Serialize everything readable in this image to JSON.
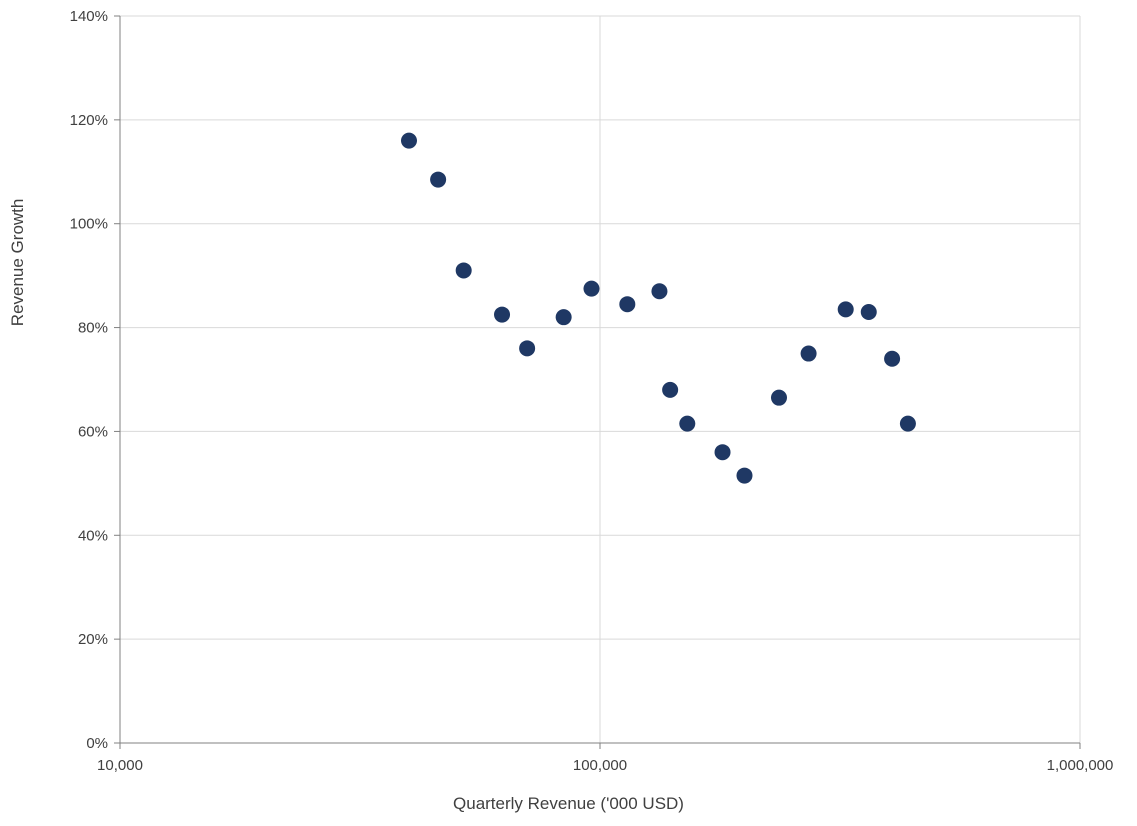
{
  "chart_data": {
    "type": "scatter",
    "title": "",
    "xlabel": "Quarterly Revenue ('000 USD)",
    "ylabel": "Revenue Growth",
    "x_scale": "log",
    "xlim": [
      10000,
      1000000
    ],
    "ylim": [
      0,
      140
    ],
    "grid": {
      "horizontal": true,
      "vertical": true
    },
    "legend": "none",
    "x_ticks": [
      {
        "value": 10000,
        "label": "10,000"
      },
      {
        "value": 100000,
        "label": "100,000"
      },
      {
        "value": 1000000,
        "label": "1,000,000"
      }
    ],
    "y_ticks": [
      {
        "value": 0,
        "label": "0%"
      },
      {
        "value": 20,
        "label": "20%"
      },
      {
        "value": 40,
        "label": "40%"
      },
      {
        "value": 60,
        "label": "60%"
      },
      {
        "value": 80,
        "label": "80%"
      },
      {
        "value": 100,
        "label": "100%"
      },
      {
        "value": 120,
        "label": "120%"
      },
      {
        "value": 140,
        "label": "140%"
      }
    ],
    "colors": {
      "point": "#1F3864",
      "grid": "#D9D9D9",
      "axis": "#808080",
      "text": "#404040"
    },
    "points": [
      {
        "x": 40000,
        "y": 116
      },
      {
        "x": 46000,
        "y": 108.5
      },
      {
        "x": 52000,
        "y": 91
      },
      {
        "x": 62500,
        "y": 82.5
      },
      {
        "x": 70500,
        "y": 76
      },
      {
        "x": 84000,
        "y": 82
      },
      {
        "x": 96000,
        "y": 87.5
      },
      {
        "x": 114000,
        "y": 84.5
      },
      {
        "x": 133000,
        "y": 87
      },
      {
        "x": 140000,
        "y": 68
      },
      {
        "x": 152000,
        "y": 61.5
      },
      {
        "x": 180000,
        "y": 56
      },
      {
        "x": 200000,
        "y": 51.5
      },
      {
        "x": 236000,
        "y": 66.5
      },
      {
        "x": 272000,
        "y": 75
      },
      {
        "x": 325000,
        "y": 83.5
      },
      {
        "x": 363000,
        "y": 83
      },
      {
        "x": 406000,
        "y": 74
      },
      {
        "x": 438000,
        "y": 61.5
      }
    ]
  }
}
